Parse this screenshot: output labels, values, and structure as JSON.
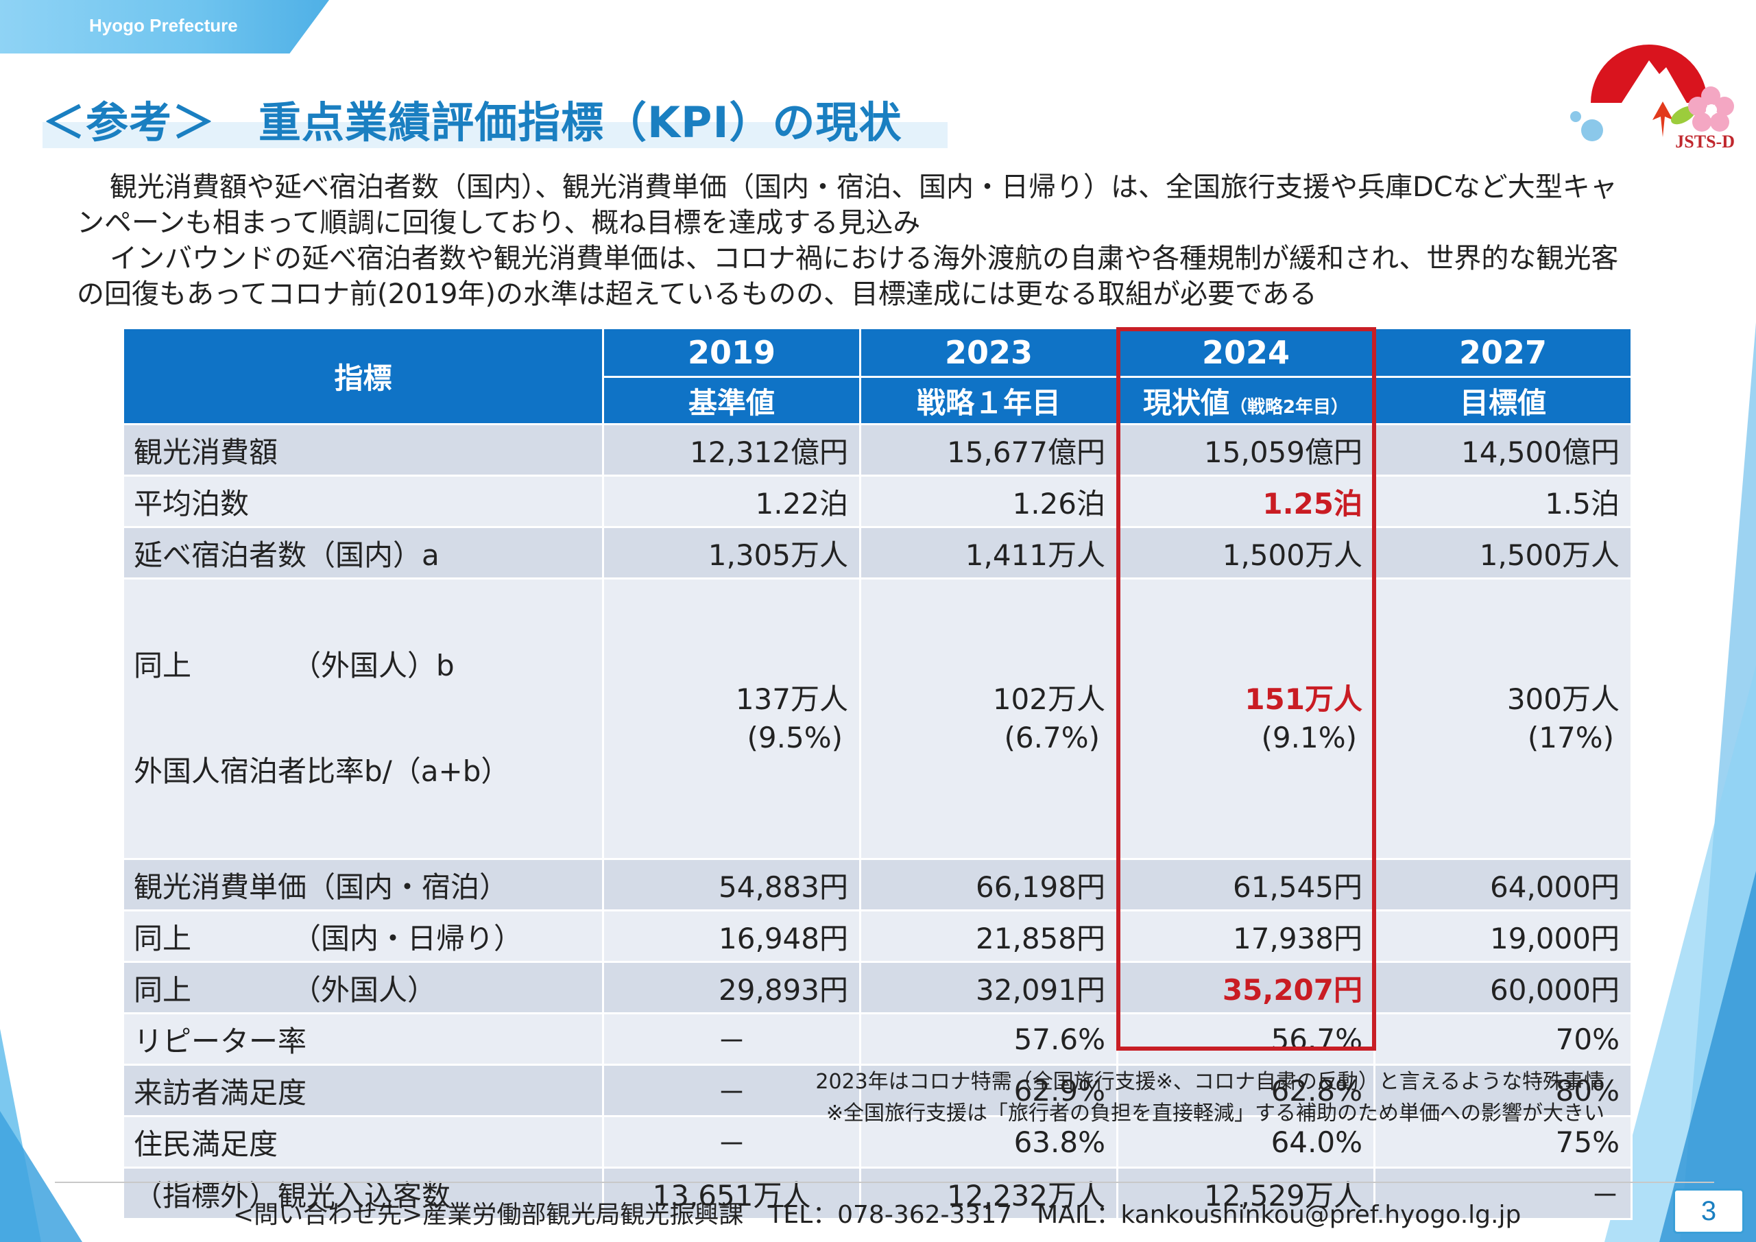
{
  "header": {
    "org_tab": "Hyogo Prefecture",
    "title": "＜参考＞　重点業績評価指標（KPI）の現状",
    "logo_text": "JSTS-D"
  },
  "intro": {
    "paragraph1": "観光消費額や延べ宿泊者数（国内）、観光消費単価（国内・宿泊、国内・日帰り）は、全国旅行支援や兵庫DCなど大型キャンペーンも相まって順調に回復しており、概ね目標を達成する見込み",
    "paragraph2": "インバウンドの延べ宿泊者数や観光消費単価は、コロナ禍における海外渡航の自粛や各種規制が緩和され、世界的な観光客の回復もあってコロナ前(2019年)の水準は超えているものの、目標達成には更なる取組が必要である"
  },
  "table": {
    "header_label": "指標",
    "years": [
      "2019",
      "2023",
      "2024",
      "2027"
    ],
    "subs": [
      "基準値",
      "戦略１年目",
      "現状値",
      "目標値"
    ],
    "sub_note_2024": "（戦略2年目）",
    "rows": [
      {
        "label": "観光消費額",
        "v2019": "12,312億円",
        "v2023": "15,677億円",
        "v2024": "15,059億円",
        "v2027": "14,500億円"
      },
      {
        "label": "平均泊数",
        "v2019": "1.22泊",
        "v2023": "1.26泊",
        "v2024": "1.25泊",
        "v2027": "1.5泊"
      },
      {
        "label": "延べ宿泊者数（国内）a",
        "v2019": "1,305万人",
        "v2023": "1,411万人",
        "v2024": "1,500万人",
        "v2027": "1,500万人"
      },
      {
        "label": "同上　　　　（外国人）b",
        "label2": "外国人宿泊者比率b/（a+b）",
        "v2019": "137万人",
        "v2019b": "(9.5%)",
        "v2023": "102万人",
        "v2023b": "(6.7%)",
        "v2024": "151万人",
        "v2024b": "(9.1%)",
        "v2027": "300万人",
        "v2027b": "(17%)"
      },
      {
        "label": "観光消費単価（国内・宿泊）",
        "v2019": "54,883円",
        "v2023": "66,198円",
        "v2024": "61,545円",
        "v2027": "64,000円"
      },
      {
        "label": "同上　　　　（国内・日帰り）",
        "v2019": "16,948円",
        "v2023": "21,858円",
        "v2024": "17,938円",
        "v2027": "19,000円"
      },
      {
        "label": "同上　　　　（外国人）",
        "v2019": "29,893円",
        "v2023": "32,091円",
        "v2024": "35,207円",
        "v2027": "60,000円"
      },
      {
        "label": "リピーター率",
        "v2019": "－",
        "v2023": "57.6%",
        "v2024": "56.7%",
        "v2027": "70%"
      },
      {
        "label": "来訪者満足度",
        "v2019": "－",
        "v2023": "62.9%",
        "v2024": "62.8%",
        "v2027": "80%"
      },
      {
        "label": "住民満足度",
        "v2019": "－",
        "v2023": "63.8%",
        "v2024": "64.0%",
        "v2027": "75%"
      },
      {
        "label": "（指標外）観光入込客数",
        "v2019": "13,651万人",
        "v2023": "12,232万人",
        "v2024": "12,529万人",
        "v2027": "－"
      }
    ]
  },
  "notes": {
    "line1": "2023年はコロナ特需（全国旅行支援※、コロナ自粛の反動）と言えるような特殊事情",
    "line2": "※全国旅行支援は「旅行者の負担を直接軽減」する補助のため単価への影響が大きい"
  },
  "footer": {
    "contact": "<問い合わせ先>産業労働部観光局観光振興課　TEL：078-362-3317　MAIL：kankoushinkou@pref.hyogo.lg.jp",
    "page_number": "3"
  },
  "colors": {
    "accent": "#1a7fc1",
    "header_bg": "#0f73c6",
    "highlight": "#c81e25"
  }
}
